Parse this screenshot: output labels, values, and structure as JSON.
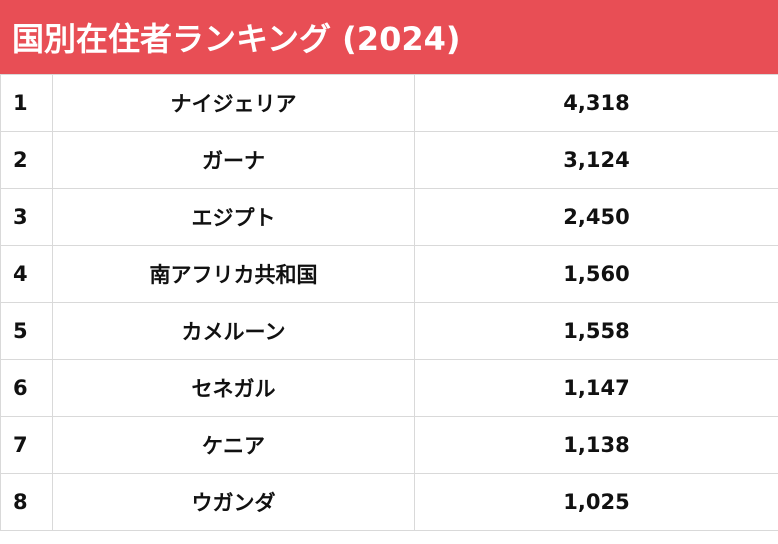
{
  "title": "国別在住者ランキング (2024)",
  "colors": {
    "header_bg": "#e84e55",
    "header_text": "#ffffff",
    "grid_line": "#d9d9d9",
    "cell_text": "#111111"
  },
  "rows": [
    {
      "rank": "1",
      "country": "ナイジェリア",
      "value": "4,318"
    },
    {
      "rank": "2",
      "country": "ガーナ",
      "value": "3,124"
    },
    {
      "rank": "3",
      "country": "エジプト",
      "value": "2,450"
    },
    {
      "rank": "4",
      "country": "南アフリカ共和国",
      "value": "1,560"
    },
    {
      "rank": "5",
      "country": "カメルーン",
      "value": "1,558"
    },
    {
      "rank": "6",
      "country": "セネガル",
      "value": "1,147"
    },
    {
      "rank": "7",
      "country": "ケニア",
      "value": "1,138"
    },
    {
      "rank": "8",
      "country": "ウガンダ",
      "value": "1,025"
    }
  ]
}
